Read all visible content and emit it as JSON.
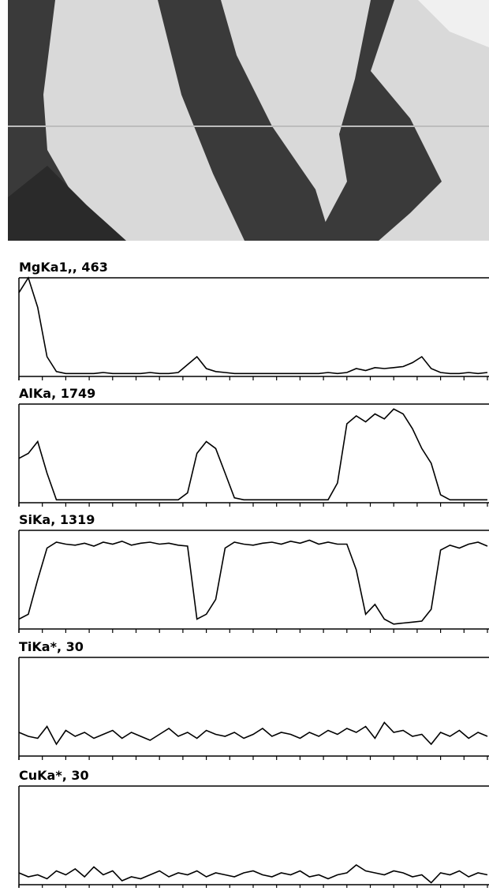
{
  "chart_data": [
    {
      "type": "line",
      "title": "MgKa1,, 463",
      "color": "#000000",
      "xlim": [
        0,
        100
      ],
      "ylim": [
        0,
        100
      ],
      "xticks": [
        0,
        5,
        10,
        15,
        20,
        25,
        30,
        35,
        40,
        45,
        50,
        55,
        60,
        65,
        70,
        75,
        80,
        85,
        90,
        95,
        100
      ],
      "x": [
        0,
        2,
        4,
        6,
        8,
        10,
        12,
        14,
        16,
        18,
        20,
        22,
        24,
        26,
        28,
        30,
        32,
        34,
        36,
        38,
        40,
        42,
        44,
        46,
        48,
        50,
        52,
        54,
        56,
        58,
        60,
        62,
        64,
        66,
        68,
        70,
        72,
        74,
        76,
        78,
        80,
        82,
        84,
        86,
        88,
        90,
        92,
        94,
        96,
        98,
        100
      ],
      "values": [
        85,
        100,
        70,
        20,
        5,
        3,
        3,
        3,
        3,
        4,
        3,
        3,
        3,
        3,
        4,
        3,
        3,
        4,
        12,
        20,
        8,
        5,
        4,
        3,
        3,
        3,
        3,
        3,
        3,
        3,
        3,
        3,
        3,
        4,
        3,
        4,
        8,
        6,
        9,
        8,
        9,
        10,
        14,
        20,
        8,
        4,
        3,
        3,
        4,
        3,
        4
      ]
    },
    {
      "type": "line",
      "title": "AlKa, 1749",
      "color": "#000000",
      "xlim": [
        0,
        100
      ],
      "ylim": [
        0,
        100
      ],
      "xticks": [
        0,
        5,
        10,
        15,
        20,
        25,
        30,
        35,
        40,
        45,
        50,
        55,
        60,
        65,
        70,
        75,
        80,
        85,
        90,
        95,
        100
      ],
      "x": [
        0,
        2,
        4,
        6,
        8,
        10,
        12,
        14,
        16,
        18,
        20,
        22,
        24,
        26,
        28,
        30,
        32,
        34,
        36,
        38,
        40,
        42,
        44,
        46,
        48,
        50,
        52,
        54,
        56,
        58,
        60,
        62,
        64,
        66,
        68,
        70,
        72,
        74,
        76,
        78,
        80,
        82,
        84,
        86,
        88,
        90,
        92,
        94,
        96,
        98,
        100
      ],
      "values": [
        45,
        50,
        62,
        30,
        3,
        3,
        3,
        3,
        3,
        3,
        3,
        3,
        3,
        3,
        3,
        3,
        3,
        3,
        10,
        50,
        62,
        55,
        30,
        5,
        3,
        3,
        3,
        3,
        3,
        3,
        3,
        3,
        3,
        3,
        20,
        80,
        88,
        82,
        90,
        85,
        95,
        90,
        75,
        55,
        40,
        8,
        3,
        3,
        3,
        3,
        3
      ]
    },
    {
      "type": "line",
      "title": "SiKa, 1319",
      "color": "#000000",
      "xlim": [
        0,
        100
      ],
      "ylim": [
        0,
        100
      ],
      "xticks": [
        0,
        5,
        10,
        15,
        20,
        25,
        30,
        35,
        40,
        45,
        50,
        55,
        60,
        65,
        70,
        75,
        80,
        85,
        90,
        95,
        100
      ],
      "x": [
        0,
        2,
        4,
        6,
        8,
        10,
        12,
        14,
        16,
        18,
        20,
        22,
        24,
        26,
        28,
        30,
        32,
        34,
        36,
        38,
        40,
        42,
        44,
        46,
        48,
        50,
        52,
        54,
        56,
        58,
        60,
        62,
        64,
        66,
        68,
        70,
        72,
        74,
        76,
        78,
        80,
        82,
        84,
        86,
        88,
        90,
        92,
        94,
        96,
        98,
        100
      ],
      "values": [
        10,
        15,
        50,
        82,
        88,
        86,
        85,
        87,
        84,
        88,
        86,
        89,
        85,
        87,
        88,
        86,
        87,
        85,
        84,
        10,
        15,
        30,
        82,
        88,
        86,
        85,
        87,
        88,
        86,
        89,
        87,
        90,
        86,
        88,
        86,
        86,
        60,
        15,
        25,
        10,
        5,
        6,
        7,
        8,
        20,
        80,
        85,
        82,
        86,
        88,
        84
      ]
    },
    {
      "type": "line",
      "title": "TiKa*, 30",
      "color": "#000000",
      "xlim": [
        0,
        100
      ],
      "ylim": [
        0,
        100
      ],
      "xticks": [
        0,
        5,
        10,
        15,
        20,
        25,
        30,
        35,
        40,
        45,
        50,
        55,
        60,
        65,
        70,
        75,
        80,
        85,
        90,
        95,
        100
      ],
      "x": [
        0,
        2,
        4,
        6,
        8,
        10,
        12,
        14,
        16,
        18,
        20,
        22,
        24,
        26,
        28,
        30,
        32,
        34,
        36,
        38,
        40,
        42,
        44,
        46,
        48,
        50,
        52,
        54,
        56,
        58,
        60,
        62,
        64,
        66,
        68,
        70,
        72,
        74,
        76,
        78,
        80,
        82,
        84,
        86,
        88,
        90,
        92,
        94,
        96,
        98,
        100
      ],
      "values": [
        24,
        20,
        18,
        30,
        12,
        26,
        20,
        24,
        18,
        22,
        26,
        18,
        24,
        20,
        16,
        22,
        28,
        20,
        24,
        18,
        26,
        22,
        20,
        24,
        18,
        22,
        28,
        20,
        24,
        22,
        18,
        24,
        20,
        26,
        22,
        28,
        24,
        30,
        18,
        34,
        24,
        26,
        20,
        22,
        12,
        24,
        20,
        26,
        18,
        24,
        20
      ]
    },
    {
      "type": "line",
      "title": "CuKa*, 30",
      "color": "#000000",
      "xlim": [
        0,
        100
      ],
      "ylim": [
        0,
        100
      ],
      "xticks": [
        0,
        5,
        10,
        15,
        20,
        25,
        30,
        35,
        40,
        45,
        50,
        55,
        60,
        65,
        70,
        75,
        80,
        85,
        90,
        95,
        100
      ],
      "x": [
        0,
        2,
        4,
        6,
        8,
        10,
        12,
        14,
        16,
        18,
        20,
        22,
        24,
        26,
        28,
        30,
        32,
        34,
        36,
        38,
        40,
        42,
        44,
        46,
        48,
        50,
        52,
        54,
        56,
        58,
        60,
        62,
        64,
        66,
        68,
        70,
        72,
        74,
        76,
        78,
        80,
        82,
        84,
        86,
        88,
        90,
        92,
        94,
        96,
        98,
        100
      ],
      "values": [
        12,
        8,
        10,
        6,
        14,
        10,
        16,
        8,
        18,
        10,
        14,
        4,
        8,
        6,
        10,
        14,
        8,
        12,
        10,
        14,
        8,
        12,
        10,
        8,
        12,
        14,
        10,
        8,
        12,
        10,
        14,
        8,
        10,
        6,
        10,
        12,
        20,
        14,
        12,
        10,
        14,
        12,
        8,
        10,
        2,
        12,
        10,
        14,
        8,
        12,
        10
      ]
    }
  ]
}
